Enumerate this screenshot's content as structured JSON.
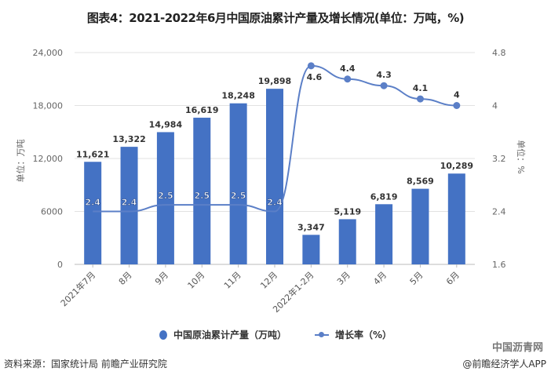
{
  "title": "图表4：2021-2022年6月中国原油累计产量及增长情况(单位：万吨，%)",
  "left_axis_label": "单位：万吨",
  "right_axis_label": "单位：%",
  "legend": {
    "bar": "中国原油累计产量（万吨）",
    "line": "增长率（%）"
  },
  "source": "资料来源：国家统计局 前瞻产业研究院",
  "credit": "@前瞻经济学人APP",
  "brand_watermark": "中国沥青网",
  "colors": {
    "bar": "#4472c4",
    "line": "#5b7fc7"
  },
  "chart_data": {
    "type": "bar",
    "title": "图表4：2021-2022年6月中国原油累计产量及增长情况(单位：万吨，%)",
    "categories": [
      "2021年7月",
      "8月",
      "9月",
      "10月",
      "11月",
      "12月",
      "2022年1-2月",
      "3月",
      "4月",
      "5月",
      "6月"
    ],
    "series": [
      {
        "name": "中国原油累计产量（万吨）",
        "type": "bar",
        "axis": "left",
        "values": [
          11621,
          13322,
          14984,
          16619,
          18248,
          19898,
          3347,
          5119,
          6819,
          8569,
          10289
        ]
      },
      {
        "name": "增长率（%）",
        "type": "line",
        "axis": "right",
        "values": [
          2.4,
          2.4,
          2.5,
          2.5,
          2.5,
          2.4,
          4.6,
          4.4,
          4.3,
          4.1,
          4
        ]
      }
    ],
    "ylabel": "单位：万吨",
    "ylabel_right": "单位：%",
    "ylim": [
      0,
      24000
    ],
    "yticks": [
      "0",
      "6000",
      "12,000",
      "18,000",
      "24,000"
    ],
    "ylim_right": [
      1.6,
      4.8
    ],
    "yticks_right": [
      "1.6",
      "2.4",
      "3.2",
      "4",
      "4.8"
    ],
    "grid": true,
    "legend_position": "bottom"
  }
}
